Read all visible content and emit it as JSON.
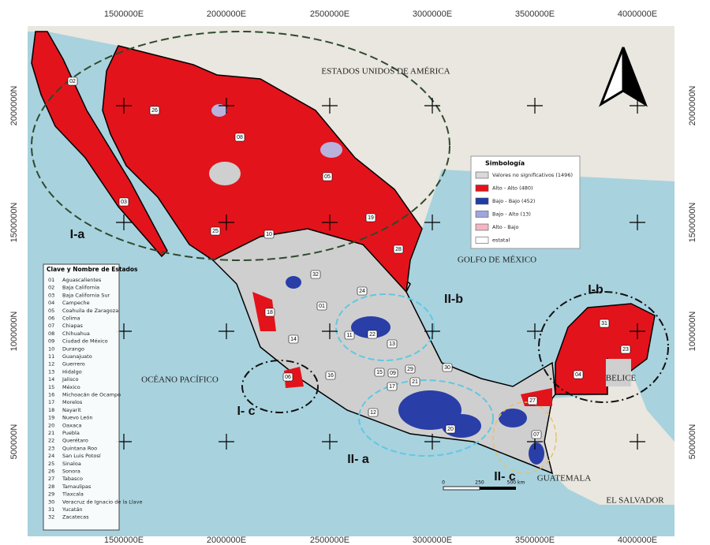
{
  "coordinates": {
    "x_labels": [
      "1500000E",
      "2000000E",
      "2500000E",
      "3000000E",
      "3500000E",
      "4000000E"
    ],
    "y_labels": [
      "2000000N",
      "1500000N",
      "1000000N",
      "500000N"
    ]
  },
  "places": [
    "ESTADOS UNIDOS DE AMÉRICA",
    "GOLFO DE MÉXICO",
    "OCÉANO PACÍFICO",
    "BELICE",
    "GUATEMALA",
    "EL SALVADOR"
  ],
  "regions": [
    "I-a",
    "I-b",
    "I- c",
    "II- a",
    "II-b",
    "II- c"
  ],
  "map_labels": [
    "02",
    "26",
    "08",
    "05",
    "19",
    "28",
    "03",
    "25",
    "10",
    "32",
    "24",
    "01",
    "18",
    "14",
    "11",
    "22",
    "13",
    "06",
    "16",
    "15",
    "09",
    "29",
    "21",
    "17",
    "30",
    "12",
    "20",
    "27",
    "07",
    "04",
    "23",
    "31"
  ],
  "legend": {
    "title": "Simbología",
    "items": [
      {
        "label": "Valores no significativos (1496)",
        "color": "#d9d9d9"
      },
      {
        "label": "Alto - Alto (480)",
        "color": "#e3131b"
      },
      {
        "label": "Bajo - Bajo (452)",
        "color": "#1f3da8"
      },
      {
        "label": "Bajo - Alto (13)",
        "color": "#9fa6dc"
      },
      {
        "label": "Alto - Bajo",
        "color": "#f4b6c2"
      },
      {
        "label": "estatal",
        "color": "#ffffff"
      }
    ]
  },
  "state_list": {
    "title": "Clave y Nombre de Estados",
    "entries": [
      [
        "01",
        "Aguascalientes"
      ],
      [
        "02",
        "Baja California"
      ],
      [
        "03",
        "Baja California Sur"
      ],
      [
        "04",
        "Campeche"
      ],
      [
        "05",
        "Coahuila de Zaragoza"
      ],
      [
        "06",
        "Colima"
      ],
      [
        "07",
        "Chiapas"
      ],
      [
        "08",
        "Chihuahua"
      ],
      [
        "09",
        "Ciudad de México"
      ],
      [
        "10",
        "Durango"
      ],
      [
        "11",
        "Guanajuato"
      ],
      [
        "12",
        "Guerrero"
      ],
      [
        "13",
        "Hidalgo"
      ],
      [
        "14",
        "Jalisco"
      ],
      [
        "15",
        "México"
      ],
      [
        "16",
        "Michoacán de Ocampo"
      ],
      [
        "17",
        "Morelos"
      ],
      [
        "18",
        "Nayarit"
      ],
      [
        "19",
        "Nuevo León"
      ],
      [
        "20",
        "Oaxaca"
      ],
      [
        "21",
        "Puebla"
      ],
      [
        "22",
        "Querétaro"
      ],
      [
        "23",
        "Quintana Roo"
      ],
      [
        "24",
        "San Luis Potosí"
      ],
      [
        "25",
        "Sinaloa"
      ],
      [
        "26",
        "Sonora"
      ],
      [
        "27",
        "Tabasco"
      ],
      [
        "28",
        "Tamaulipas"
      ],
      [
        "29",
        "Tlaxcala"
      ],
      [
        "30",
        "Veracruz de Ignacio de la Llave"
      ],
      [
        "31",
        "Yucatán"
      ],
      [
        "32",
        "Zacatecas"
      ]
    ]
  },
  "scale": [
    "0",
    "250",
    "500 km"
  ]
}
